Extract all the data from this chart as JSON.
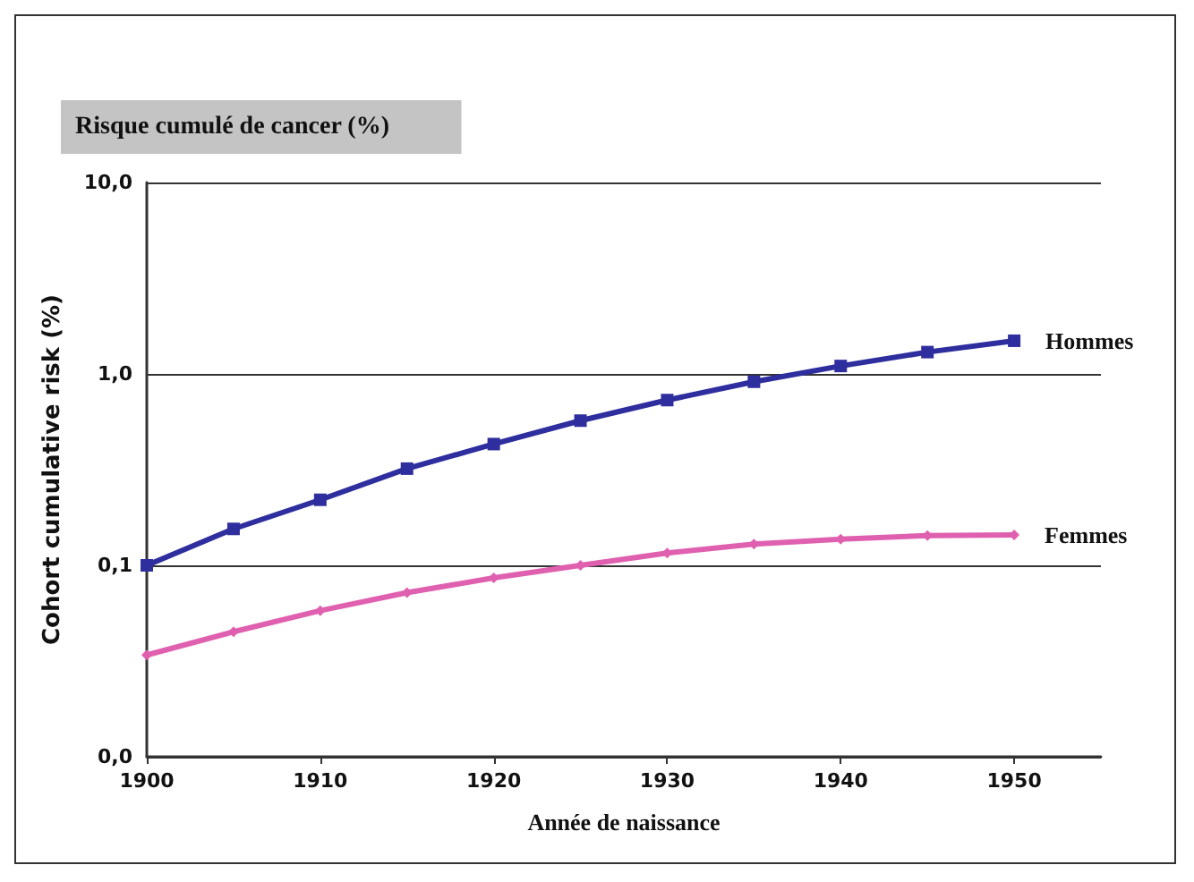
{
  "chart_data": {
    "type": "line",
    "title": "Risque cumulé de cancer (%)",
    "xlabel": "Année de naissance",
    "ylabel": "Cohort cumulative risk (%)",
    "x": [
      1900,
      1905,
      1910,
      1915,
      1920,
      1925,
      1930,
      1935,
      1940,
      1945,
      1950
    ],
    "series": [
      {
        "name": "Hommes",
        "color": "#2e2e9e",
        "marker": "square",
        "values": [
          0.1,
          0.155,
          0.22,
          0.32,
          0.43,
          0.57,
          0.73,
          0.91,
          1.1,
          1.3,
          1.49
        ]
      },
      {
        "name": "Femmes",
        "color": "#e060b0",
        "marker": "diamond",
        "values": [
          0.034,
          0.045,
          0.058,
          0.072,
          0.086,
          0.1,
          0.116,
          0.129,
          0.137,
          0.143,
          0.144
        ]
      }
    ],
    "log": "y",
    "xlim": [
      1900,
      1955
    ],
    "xticks": [
      1900,
      1910,
      1920,
      1930,
      1940,
      1950
    ],
    "ylim": [
      0.01,
      10
    ],
    "yticks": [
      {
        "value": 0.01,
        "label": "0,0"
      },
      {
        "value": 0.1,
        "label": "0,1"
      },
      {
        "value": 1,
        "label": "1,0"
      },
      {
        "value": 10,
        "label": "10,0"
      }
    ],
    "grid": "y",
    "legend": false,
    "line_style": "solid"
  }
}
